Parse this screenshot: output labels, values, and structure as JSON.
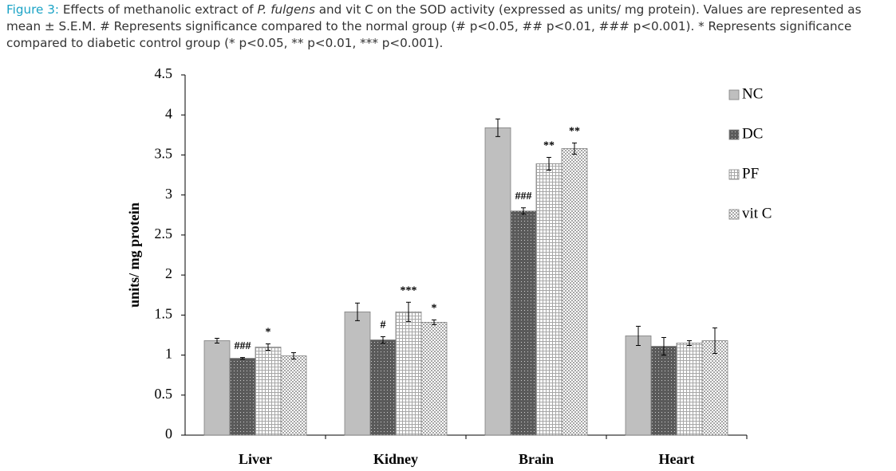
{
  "caption": {
    "label": "Figure 3:",
    "parts": [
      "Effects of methanolic extract of ",
      "P. fulgens",
      " and vit C on the SOD activity (expressed as units/ mg protein). Values are represented as mean ± S.E.M. # Represents significance compared to the normal group (# p<0.05, ## p<0.01, ### p<0.001). * Represents significance compared to diabetic control group (* p<0.05, ** p<0.01, *** p<0.001)."
    ]
  },
  "chart_data": {
    "type": "bar",
    "y_label": "units/ mg protein",
    "categories": [
      "Liver",
      "Kidney",
      "Brain",
      "Heart"
    ],
    "series": [
      {
        "name": "NC",
        "color": "#bfbfbf",
        "pattern": "solid",
        "values": [
          1.18,
          1.54,
          3.84,
          1.24
        ],
        "errors": [
          0.03,
          0.11,
          0.11,
          0.12
        ],
        "annotations": [
          null,
          null,
          null,
          null
        ]
      },
      {
        "name": "DC",
        "color": "#5a5a5a",
        "pattern": "dots",
        "values": [
          0.96,
          1.19,
          2.8,
          1.11
        ],
        "errors": [
          0.01,
          0.04,
          0.04,
          0.11
        ],
        "annotations": [
          "###",
          "#",
          "###",
          null
        ]
      },
      {
        "name": "PF",
        "color": "#a6a6a6",
        "pattern": "grid",
        "values": [
          1.1,
          1.54,
          3.39,
          1.15
        ],
        "errors": [
          0.04,
          0.12,
          0.08,
          0.03
        ],
        "annotations": [
          "*",
          "***",
          "**",
          null
        ]
      },
      {
        "name": "vit C",
        "color": "#a6a6a6",
        "pattern": "checker",
        "values": [
          0.99,
          1.41,
          3.58,
          1.18
        ],
        "errors": [
          0.04,
          0.03,
          0.07,
          0.16
        ],
        "annotations": [
          null,
          "*",
          "**",
          null
        ]
      }
    ],
    "ylim": [
      0,
      4.5
    ],
    "yticks": [
      0,
      0.5,
      1,
      1.5,
      2,
      2.5,
      3,
      3.5,
      4,
      4.5
    ],
    "grid": false,
    "legend": "right"
  }
}
